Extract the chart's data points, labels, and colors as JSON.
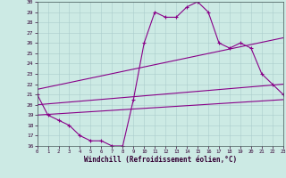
{
  "xlabel": "Windchill (Refroidissement éolien,°C)",
  "xlim": [
    0,
    23
  ],
  "ylim": [
    16,
    30
  ],
  "yticks": [
    16,
    17,
    18,
    19,
    20,
    21,
    22,
    23,
    24,
    25,
    26,
    27,
    28,
    29,
    30
  ],
  "xticks": [
    0,
    1,
    2,
    3,
    4,
    5,
    6,
    7,
    8,
    9,
    10,
    11,
    12,
    13,
    14,
    15,
    16,
    17,
    18,
    19,
    20,
    21,
    22,
    23
  ],
  "background_color": "#cceae4",
  "grid_color": "#aacccc",
  "line_color": "#880088",
  "line1_x": [
    0,
    1,
    2,
    3,
    4,
    5,
    6,
    7,
    8,
    9,
    10,
    11,
    12,
    13,
    14,
    15,
    16,
    17,
    18,
    19,
    20,
    21,
    22,
    23
  ],
  "line1_y": [
    21,
    19,
    18.5,
    18,
    17,
    16.5,
    16.5,
    16,
    16,
    20.5,
    26,
    29,
    28.5,
    28.5,
    29.5,
    30,
    29,
    26,
    25.5,
    26,
    25.5,
    23,
    22,
    21
  ],
  "line2_x": [
    0,
    23
  ],
  "line2_y": [
    21.5,
    26.5
  ],
  "line3_x": [
    0,
    23
  ],
  "line3_y": [
    20,
    22
  ],
  "line4_x": [
    0,
    23
  ],
  "line4_y": [
    19,
    20.5
  ]
}
